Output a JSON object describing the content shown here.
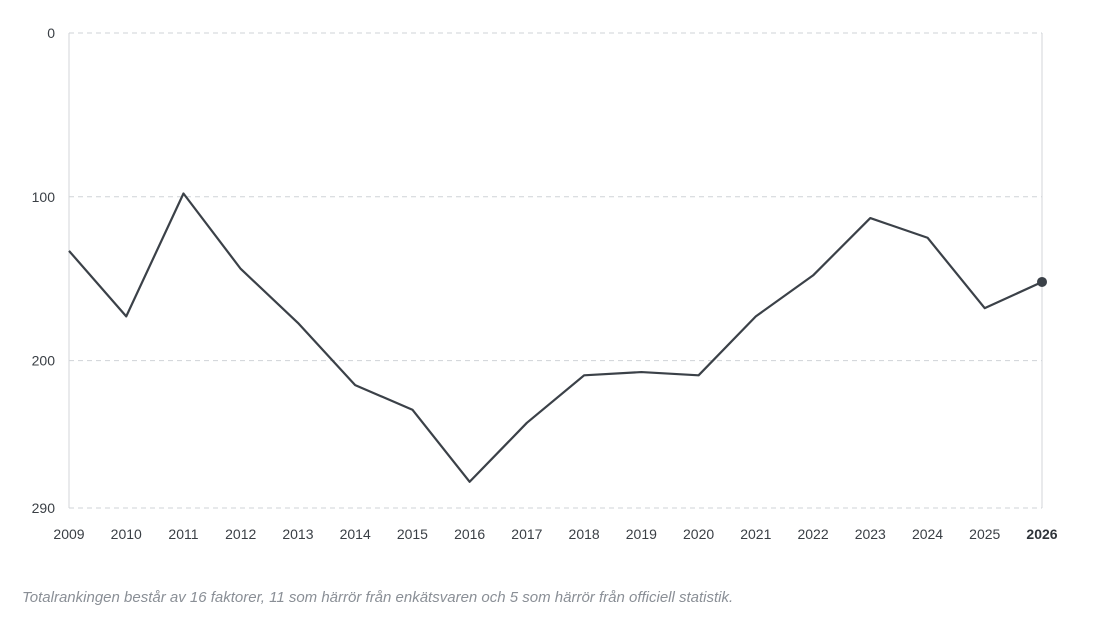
{
  "chart_data": {
    "type": "line",
    "x": [
      "2009",
      "2010",
      "2011",
      "2012",
      "2013",
      "2014",
      "2015",
      "2016",
      "2017",
      "2018",
      "2019",
      "2020",
      "2021",
      "2022",
      "2023",
      "2024",
      "2025",
      "2026"
    ],
    "values": [
      133,
      173,
      98,
      144,
      177,
      215,
      230,
      274,
      238,
      209,
      207,
      209,
      173,
      148,
      113,
      125,
      168,
      152
    ],
    "y_ticks": [
      0,
      100,
      200,
      290
    ],
    "ylim": [
      0,
      290
    ],
    "y_inverted": true,
    "grid": true,
    "highlight_last": true,
    "line_color": "#3b4148",
    "grid_color": "#cfd3d7"
  },
  "caption": "Totalrankingen består av 16 faktorer, 11 som härrör från enkätsvaren och 5 som härrör från officiell statistik."
}
